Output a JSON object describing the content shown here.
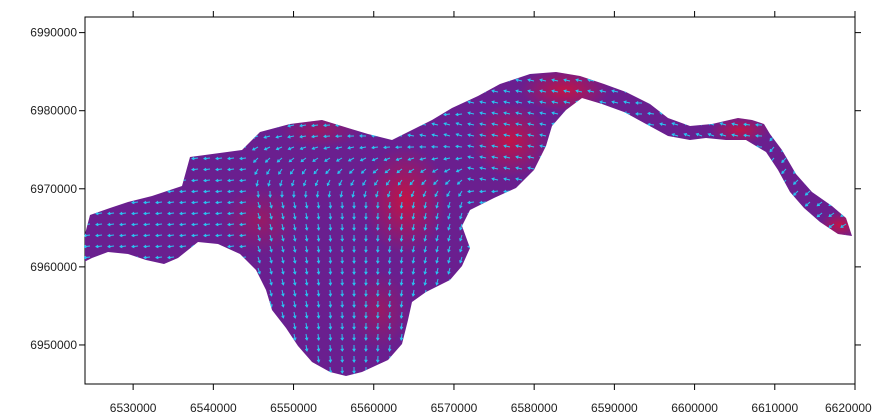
{
  "map": {
    "x_axis": {
      "min": 6524000,
      "max": 6620000,
      "ticks": [
        6530000,
        6540000,
        6550000,
        6560000,
        6570000,
        6580000,
        6590000,
        6600000,
        6610000,
        6620000
      ],
      "tick_labels": [
        "6530000",
        "6540000",
        "6550000",
        "6560000",
        "6570000",
        "6580000",
        "6590000",
        "6600000",
        "6610000",
        "6620000"
      ]
    },
    "y_axis": {
      "min": 6945000,
      "max": 6992000,
      "ticks": [
        6990000,
        6980000,
        6970000,
        6960000,
        6950000
      ],
      "tick_labels": [
        "6990000",
        "6980000",
        "6970000",
        "6960000",
        "6950000"
      ]
    },
    "colors": {
      "frame": "#000000",
      "water_base": "#6a1f8f",
      "water_high": "#c0143f",
      "vector": "#29c6f2",
      "background": "#ffffff"
    },
    "layers": [
      "speed-field",
      "velocity-vectors"
    ]
  }
}
